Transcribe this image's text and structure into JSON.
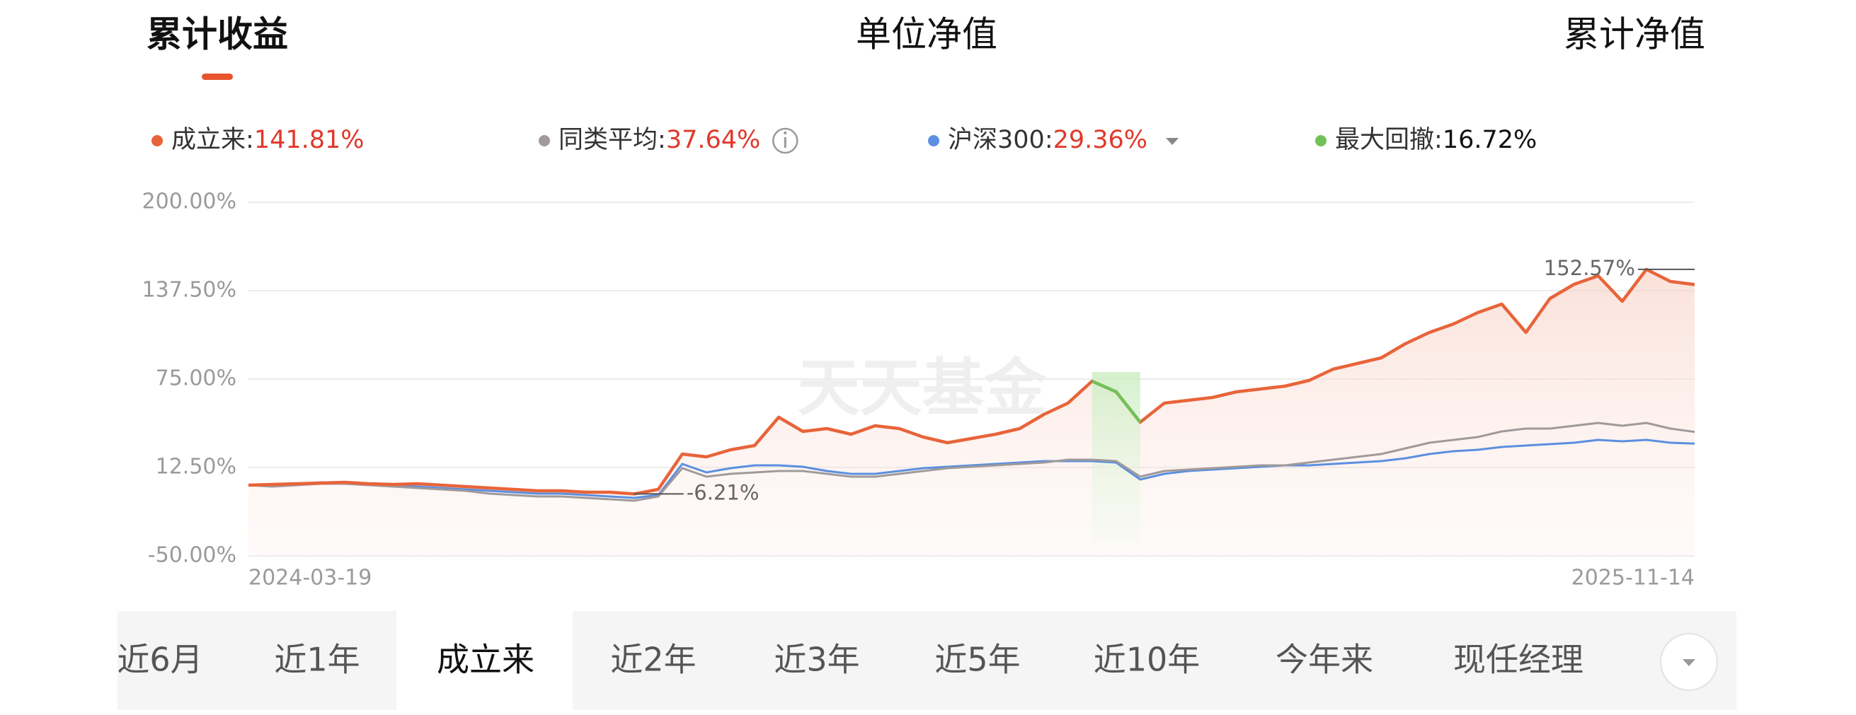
{
  "top_tabs": {
    "items": [
      "累计收益",
      "单位净值",
      "累计净值"
    ],
    "active": 0
  },
  "chart_data": {
    "type": "line",
    "categories": [
      "2024-03-19",
      null,
      null,
      null,
      null,
      null,
      null,
      null,
      null,
      null,
      null,
      null,
      null,
      null,
      null,
      null,
      null,
      null,
      null,
      null,
      null,
      null,
      null,
      null,
      null,
      null,
      null,
      null,
      null,
      null,
      null,
      null,
      null,
      null,
      null,
      null,
      null,
      null,
      null,
      null,
      null,
      null,
      null,
      null,
      null,
      null,
      null,
      null,
      null,
      null,
      null,
      null,
      null,
      null,
      null,
      null,
      null,
      null,
      null,
      null,
      "2025-11-14"
    ],
    "ylim": [
      -50,
      200
    ],
    "yticks": [
      {
        "value": -50,
        "label": "-50.00%"
      },
      {
        "value": 12.5,
        "label": "12.50%"
      },
      {
        "value": 75,
        "label": "75.00%"
      },
      {
        "value": 137.5,
        "label": "137.50%"
      },
      {
        "value": 200,
        "label": "200.00%"
      }
    ],
    "grid": true,
    "series": [
      {
        "name": "成立来",
        "color": "#e8643a",
        "summary": {
          "value": 141.81,
          "label": "141.81%"
        },
        "values": [
          0,
          0.5,
          1,
          1.5,
          2,
          1,
          0.5,
          1,
          0,
          -1,
          -2,
          -3,
          -4,
          -4,
          -5,
          -5,
          -6.21,
          -3,
          22,
          20,
          25,
          28,
          48,
          38,
          40,
          36,
          42,
          40,
          34,
          30,
          33,
          36,
          40,
          50,
          58,
          73.5,
          66,
          44.5,
          58,
          60,
          62,
          66,
          68,
          70,
          74,
          82,
          86,
          90,
          100,
          108,
          114,
          122,
          128,
          108,
          132,
          142,
          148,
          130,
          152.57,
          144,
          141.81
        ]
      },
      {
        "name": "同类平均",
        "color": "#a09a9a",
        "summary": {
          "value": 37.64,
          "label": "37.64%"
        },
        "values": [
          0,
          -1,
          0,
          1,
          1,
          0,
          -1,
          -2,
          -3,
          -4,
          -6,
          -7,
          -8,
          -8,
          -9,
          -10,
          -11,
          -8,
          12,
          6,
          8,
          9,
          10,
          10,
          8,
          6,
          6,
          8,
          10,
          12,
          13,
          14,
          15,
          16,
          18,
          18,
          17,
          6,
          10,
          11,
          12,
          13,
          14,
          14,
          16,
          18,
          20,
          22,
          26,
          30,
          32,
          34,
          38,
          40,
          40,
          42,
          44,
          42,
          44,
          40,
          37.64
        ]
      },
      {
        "name": "沪深300",
        "color": "#5b8fe0",
        "summary": {
          "value": 29.36,
          "label": "29.36%"
        },
        "values": [
          0,
          0,
          1,
          2,
          2,
          1,
          0,
          -1,
          -2,
          -3,
          -4,
          -5,
          -6,
          -6,
          -7,
          -8,
          -9,
          -7,
          15,
          9,
          12,
          14,
          14,
          13,
          10,
          8,
          8,
          10,
          12,
          13,
          14,
          15,
          16,
          17,
          17,
          17,
          16,
          4,
          8,
          10,
          11,
          12,
          13,
          14,
          14,
          15,
          16,
          17,
          19,
          22,
          24,
          25,
          27,
          28,
          29,
          30,
          32,
          31,
          32,
          30,
          29.36
        ]
      }
    ],
    "drawdown": {
      "name": "最大回撤",
      "value": 16.72,
      "label": "16.72%",
      "color": "#72c15a"
    },
    "annotations": [
      {
        "value": 152.57,
        "label": "152.57%"
      },
      {
        "value": -6.21,
        "label": "-6.21%"
      }
    ],
    "watermark": "天天基金"
  },
  "period_tabs": {
    "items": [
      "近6月",
      "近1年",
      "成立来",
      "近2年",
      "近3年",
      "近5年",
      "近10年",
      "今年来",
      "现任经理"
    ],
    "active": 2
  }
}
